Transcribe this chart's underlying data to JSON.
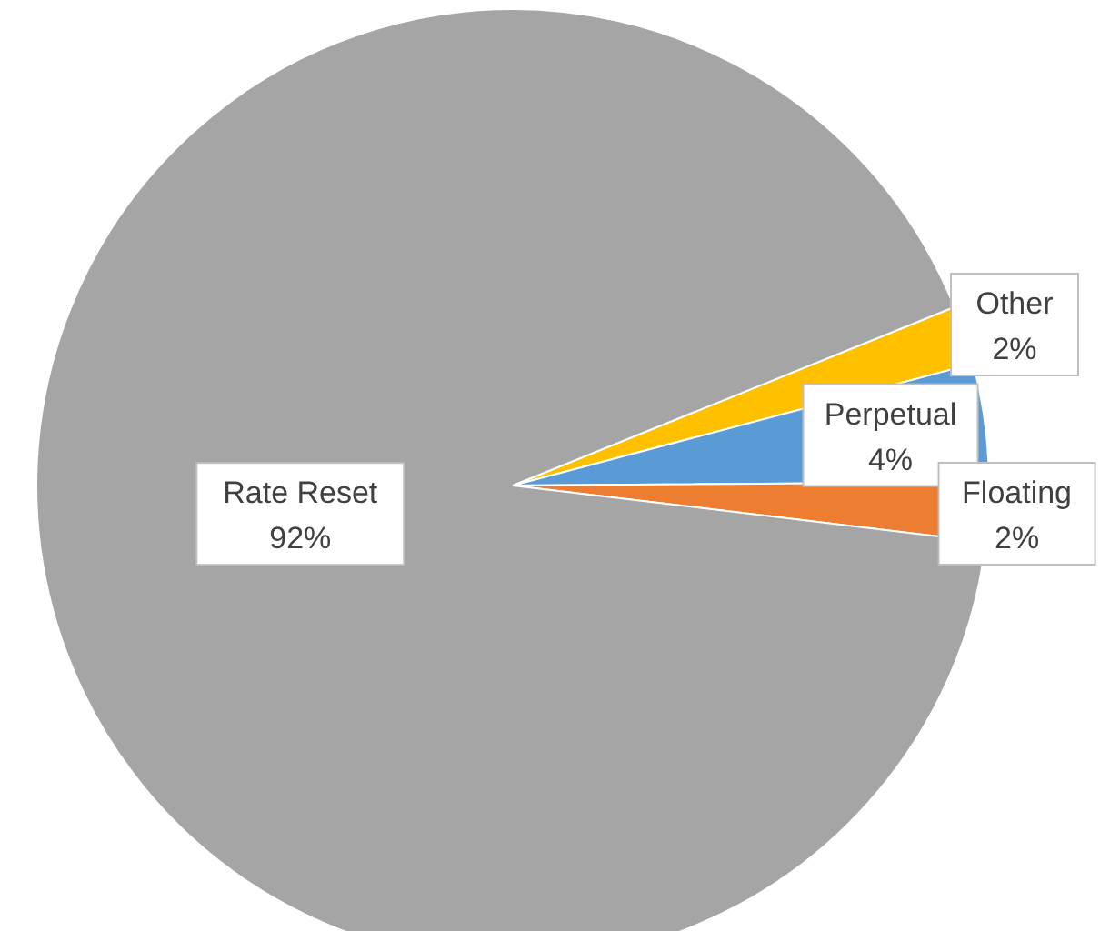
{
  "chart_data": {
    "type": "pie",
    "categories": [
      "Other",
      "Perpetual",
      "Floating",
      "Rate Reset"
    ],
    "values": [
      2,
      4,
      2,
      92
    ],
    "colors": [
      "#ffc000",
      "#5b9bd5",
      "#ed7d31",
      "#a5a5a5"
    ],
    "value_labels": [
      "2%",
      "4%",
      "2%",
      "92%"
    ],
    "legend": false
  }
}
